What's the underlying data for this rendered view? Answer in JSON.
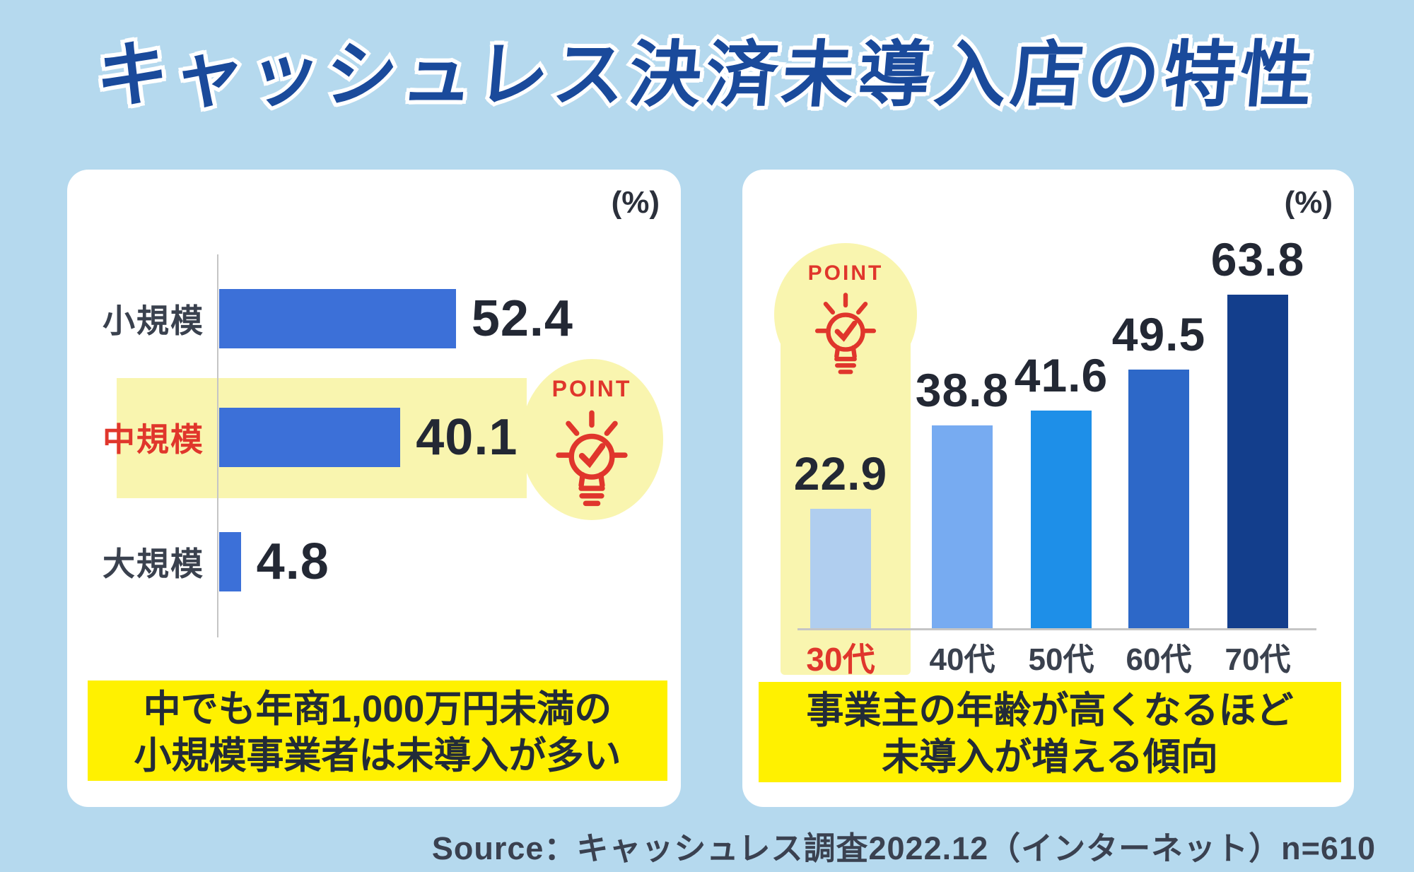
{
  "title": "キャッシュレス決済未導入店の特性",
  "source": "Source：キャッシュレス調査2022.12（インターネット）n=610",
  "colors": {
    "background": "#B5D9EE",
    "card": "#FFFFFF",
    "title_blue": "#1A4A9B",
    "bar_blue_left": "#3C70D8",
    "bars_right": [
      "#B0CEEF",
      "#77ABF1",
      "#1E8FE8",
      "#2D68C8",
      "#133E8C"
    ],
    "pale_yellow": "#F9F5AF",
    "bright_yellow": "#FFF100",
    "accent_red": "#E0362C",
    "text_dark": "#232834",
    "label_gray": "#3A414E",
    "axis_gray": "#C5C5C5"
  },
  "chart_data": [
    {
      "type": "bar",
      "orientation": "horizontal",
      "unit_label": "(%)",
      "categories": [
        "小規模",
        "中規模",
        "大規模"
      ],
      "values": [
        52.4,
        40.1,
        4.8
      ],
      "xlim": [
        0,
        60
      ],
      "grid": false,
      "highlight_index": 1,
      "annotation": "POINT",
      "callout_line1": "中でも年商1,000万円未満の",
      "callout_line2": "小規模事業者は未導入が多い"
    },
    {
      "type": "bar",
      "orientation": "vertical",
      "unit_label": "(%)",
      "categories": [
        "30代",
        "40代",
        "50代",
        "60代",
        "70代"
      ],
      "values": [
        22.9,
        38.8,
        41.6,
        49.5,
        63.8
      ],
      "ylim": [
        0,
        70
      ],
      "grid": false,
      "highlight_index": 0,
      "annotation": "POINT",
      "callout_line1": "事業主の年齢が高くなるほど",
      "callout_line2": "未導入が増える傾向"
    }
  ]
}
